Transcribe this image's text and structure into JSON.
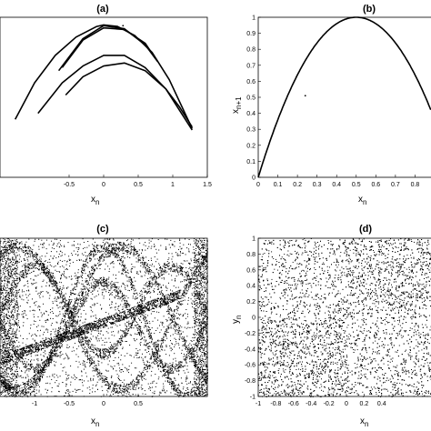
{
  "chart_data": [
    {
      "panel": "(a)",
      "type": "scatter",
      "title": "(a)",
      "xlabel": "x",
      "xlabel_sub": "n",
      "ylabel": "",
      "xlim": [
        -1.5,
        1.5
      ],
      "ylim": [
        -0.6,
        0.45
      ],
      "x_ticks": [
        -0.5,
        0,
        0.5,
        1,
        1.5
      ],
      "x_tick_labels": [
        "-0.5",
        "0",
        "0.5",
        "1",
        "1.5"
      ],
      "y_ticks": [],
      "series": [
        {
          "points": [
            [
              -1.28,
              -0.22
            ],
            [
              -1.0,
              0.02
            ],
            [
              -0.7,
              0.2
            ],
            [
              -0.4,
              0.32
            ],
            [
              -0.1,
              0.39
            ],
            [
              0.0,
              0.4
            ],
            [
              0.2,
              0.39
            ],
            [
              0.45,
              0.33
            ],
            [
              0.7,
              0.22
            ],
            [
              0.95,
              0.04
            ],
            [
              1.28,
              -0.28
            ]
          ]
        },
        {
          "points": [
            [
              -0.95,
              -0.18
            ],
            [
              -0.6,
              0.02
            ],
            [
              -0.3,
              0.13
            ],
            [
              0.0,
              0.2
            ],
            [
              0.3,
              0.2
            ],
            [
              0.6,
              0.12
            ],
            [
              0.9,
              -0.02
            ],
            [
              1.1,
              -0.14
            ],
            [
              1.28,
              -0.27
            ]
          ]
        },
        {
          "points": [
            [
              -0.55,
              -0.06
            ],
            [
              -0.3,
              0.06
            ],
            [
              0.0,
              0.13
            ],
            [
              0.3,
              0.15
            ],
            [
              0.6,
              0.1
            ],
            [
              0.9,
              -0.02
            ],
            [
              1.28,
              -0.29
            ]
          ]
        },
        {
          "points": [
            [
              -0.6,
              0.12
            ],
            [
              -0.3,
              0.3
            ],
            [
              0.0,
              0.38
            ],
            [
              0.3,
              0.37
            ],
            [
              0.6,
              0.28
            ],
            [
              0.75,
              0.18
            ]
          ]
        },
        {
          "points": [
            [
              -0.65,
              0.1
            ],
            [
              -0.3,
              0.31
            ],
            [
              0.0,
              0.395
            ],
            [
              0.3,
              0.375
            ],
            [
              0.6,
              0.27
            ],
            [
              0.78,
              0.16
            ]
          ]
        }
      ],
      "isolated_points": [
        [
          0.28,
          0.395
        ]
      ]
    },
    {
      "panel": "(b)",
      "type": "line",
      "title": "(b)",
      "xlabel": "x",
      "xlabel_sub": "n",
      "ylabel": "x",
      "ylabel_sub": "n+1",
      "xlim": [
        0,
        0.9
      ],
      "ylim": [
        0,
        1
      ],
      "x_ticks": [
        0,
        0.1,
        0.2,
        0.3,
        0.4,
        0.5,
        0.6,
        0.7,
        0.8
      ],
      "x_tick_labels": [
        "0",
        "0.1",
        "0.2",
        "0.3",
        "0.4",
        "0.5",
        "0.6",
        "0.7",
        "0.8"
      ],
      "y_ticks": [
        0,
        0.1,
        0.2,
        0.3,
        0.4,
        0.5,
        0.6,
        0.7,
        0.8,
        0.9,
        1
      ],
      "y_tick_labels": [
        "0",
        "0.1",
        "0.2",
        "0.3",
        "0.4",
        "0.5",
        "0.6",
        "0.7",
        "0.8",
        "0.9",
        "1"
      ],
      "function": "4x(1-x)",
      "isolated_points": [
        [
          0.24,
          0.51
        ]
      ]
    },
    {
      "panel": "(c)",
      "type": "scatter",
      "title": "(c)",
      "xlabel": "x",
      "xlabel_sub": "n",
      "ylabel": "",
      "xlim": [
        -1.5,
        1.5
      ],
      "ylim": [
        -1,
        1
      ],
      "x_ticks": [
        -1,
        -0.5,
        0,
        0.5
      ],
      "x_tick_labels": [
        "-1",
        "-0.5",
        "0",
        "0.5"
      ],
      "y_ticks": []
    },
    {
      "panel": "(d)",
      "type": "scatter",
      "title": "(d)",
      "xlabel": "x",
      "xlabel_sub": "n",
      "ylabel": "y",
      "ylabel_sub": "n",
      "xlim": [
        -1,
        1
      ],
      "ylim": [
        -1,
        1
      ],
      "x_ticks": [
        -1,
        -0.8,
        -0.6,
        -0.4,
        -0.2,
        0,
        0.2,
        0.4
      ],
      "x_tick_labels": [
        "-1",
        "-0.8",
        "-0.6",
        "-0.4",
        "-0.2",
        "0",
        "0.2",
        "0.4"
      ],
      "y_ticks": [
        -1,
        -0.8,
        -0.6,
        -0.4,
        -0.2,
        0,
        0.2,
        0.4,
        0.6,
        0.8,
        1
      ],
      "y_tick_labels": [
        "-1",
        "-0.8",
        "-0.6",
        "-0.4",
        "-0.2",
        "0",
        "0.2",
        "0.4",
        "0.6",
        "0.8",
        "1"
      ]
    }
  ]
}
